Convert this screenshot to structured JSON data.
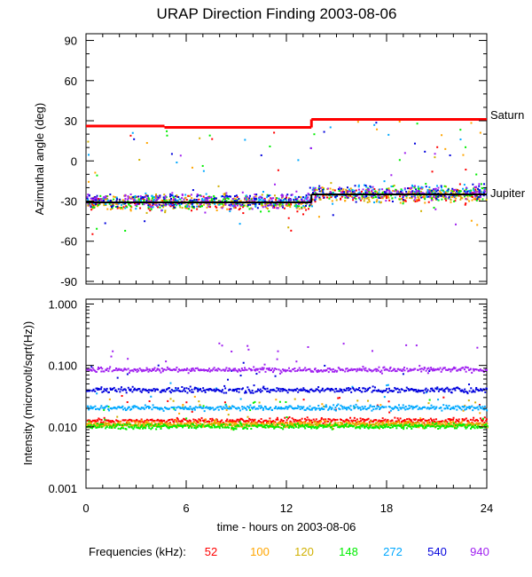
{
  "chart_data": {
    "type": "scatter",
    "title": "URAP Direction Finding  2003-08-06",
    "xlabel": "time - hours on 2003-08-06",
    "xlim": [
      0,
      24
    ],
    "xticks": [
      0,
      6,
      12,
      18,
      24
    ],
    "xtick_labels": [
      "0",
      "6",
      "12",
      "18",
      "24"
    ],
    "top_panel": {
      "ylabel": "Azimuthal angle (deg)",
      "ylim": [
        -92,
        95
      ],
      "yticks": [
        90,
        60,
        30,
        0,
        -30,
        -60,
        -90
      ],
      "ytick_labels": [
        "90",
        "60",
        "30",
        "0",
        "-30",
        "-60",
        "-90"
      ],
      "reference_lines": [
        {
          "name": "Saturn",
          "color": "#ff0000",
          "segments": [
            [
              0,
              4.7,
              26
            ],
            [
              4.7,
              13.5,
              25
            ],
            [
              13.5,
              24,
              31
            ]
          ]
        },
        {
          "name": "Jupiter",
          "color": "#000000",
          "segments": [
            [
              0,
              13.5,
              -31
            ],
            [
              13.5,
              24,
              -25
            ]
          ]
        }
      ]
    },
    "bottom_panel": {
      "ylabel": "Intensity (microvolt/sqrt(Hz))",
      "yscale": "log",
      "ylim": [
        0.001,
        1.2
      ],
      "yticks": [
        1.0,
        0.1,
        0.01,
        0.001
      ],
      "ytick_labels": [
        "1.000",
        "0.100",
        "0.010",
        "0.001"
      ]
    },
    "series": [
      {
        "name": "52",
        "color": "#ff0000",
        "baseline_deg": -30,
        "intensity": 0.013
      },
      {
        "name": "100",
        "color": "#ffa500",
        "baseline_deg": -30,
        "intensity": 0.0115
      },
      {
        "name": "120",
        "color": "#d0b000",
        "baseline_deg": -29,
        "intensity": 0.011
      },
      {
        "name": "148",
        "color": "#00ee00",
        "baseline_deg": -29,
        "intensity": 0.0105
      },
      {
        "name": "272",
        "color": "#00a8ff",
        "baseline_deg": -28,
        "intensity": 0.021
      },
      {
        "name": "540",
        "color": "#0000dd",
        "baseline_deg": -28,
        "intensity": 0.041
      },
      {
        "name": "940",
        "color": "#a020f0",
        "baseline_deg": -28,
        "intensity": 0.088
      }
    ],
    "legend": {
      "label": "Frequencies (kHz):",
      "placement": "bottom"
    }
  }
}
